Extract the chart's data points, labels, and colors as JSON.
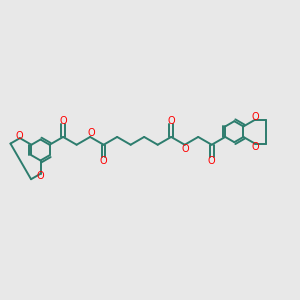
{
  "bg_color": "#e8e8e8",
  "bond_color": "#2d7d6e",
  "oxygen_color": "#ff0000",
  "bond_width": 1.4,
  "figsize": [
    3.0,
    3.0
  ],
  "dpi": 100,
  "xlim": [
    0.0,
    10.0
  ],
  "ylim": [
    3.0,
    7.0
  ]
}
